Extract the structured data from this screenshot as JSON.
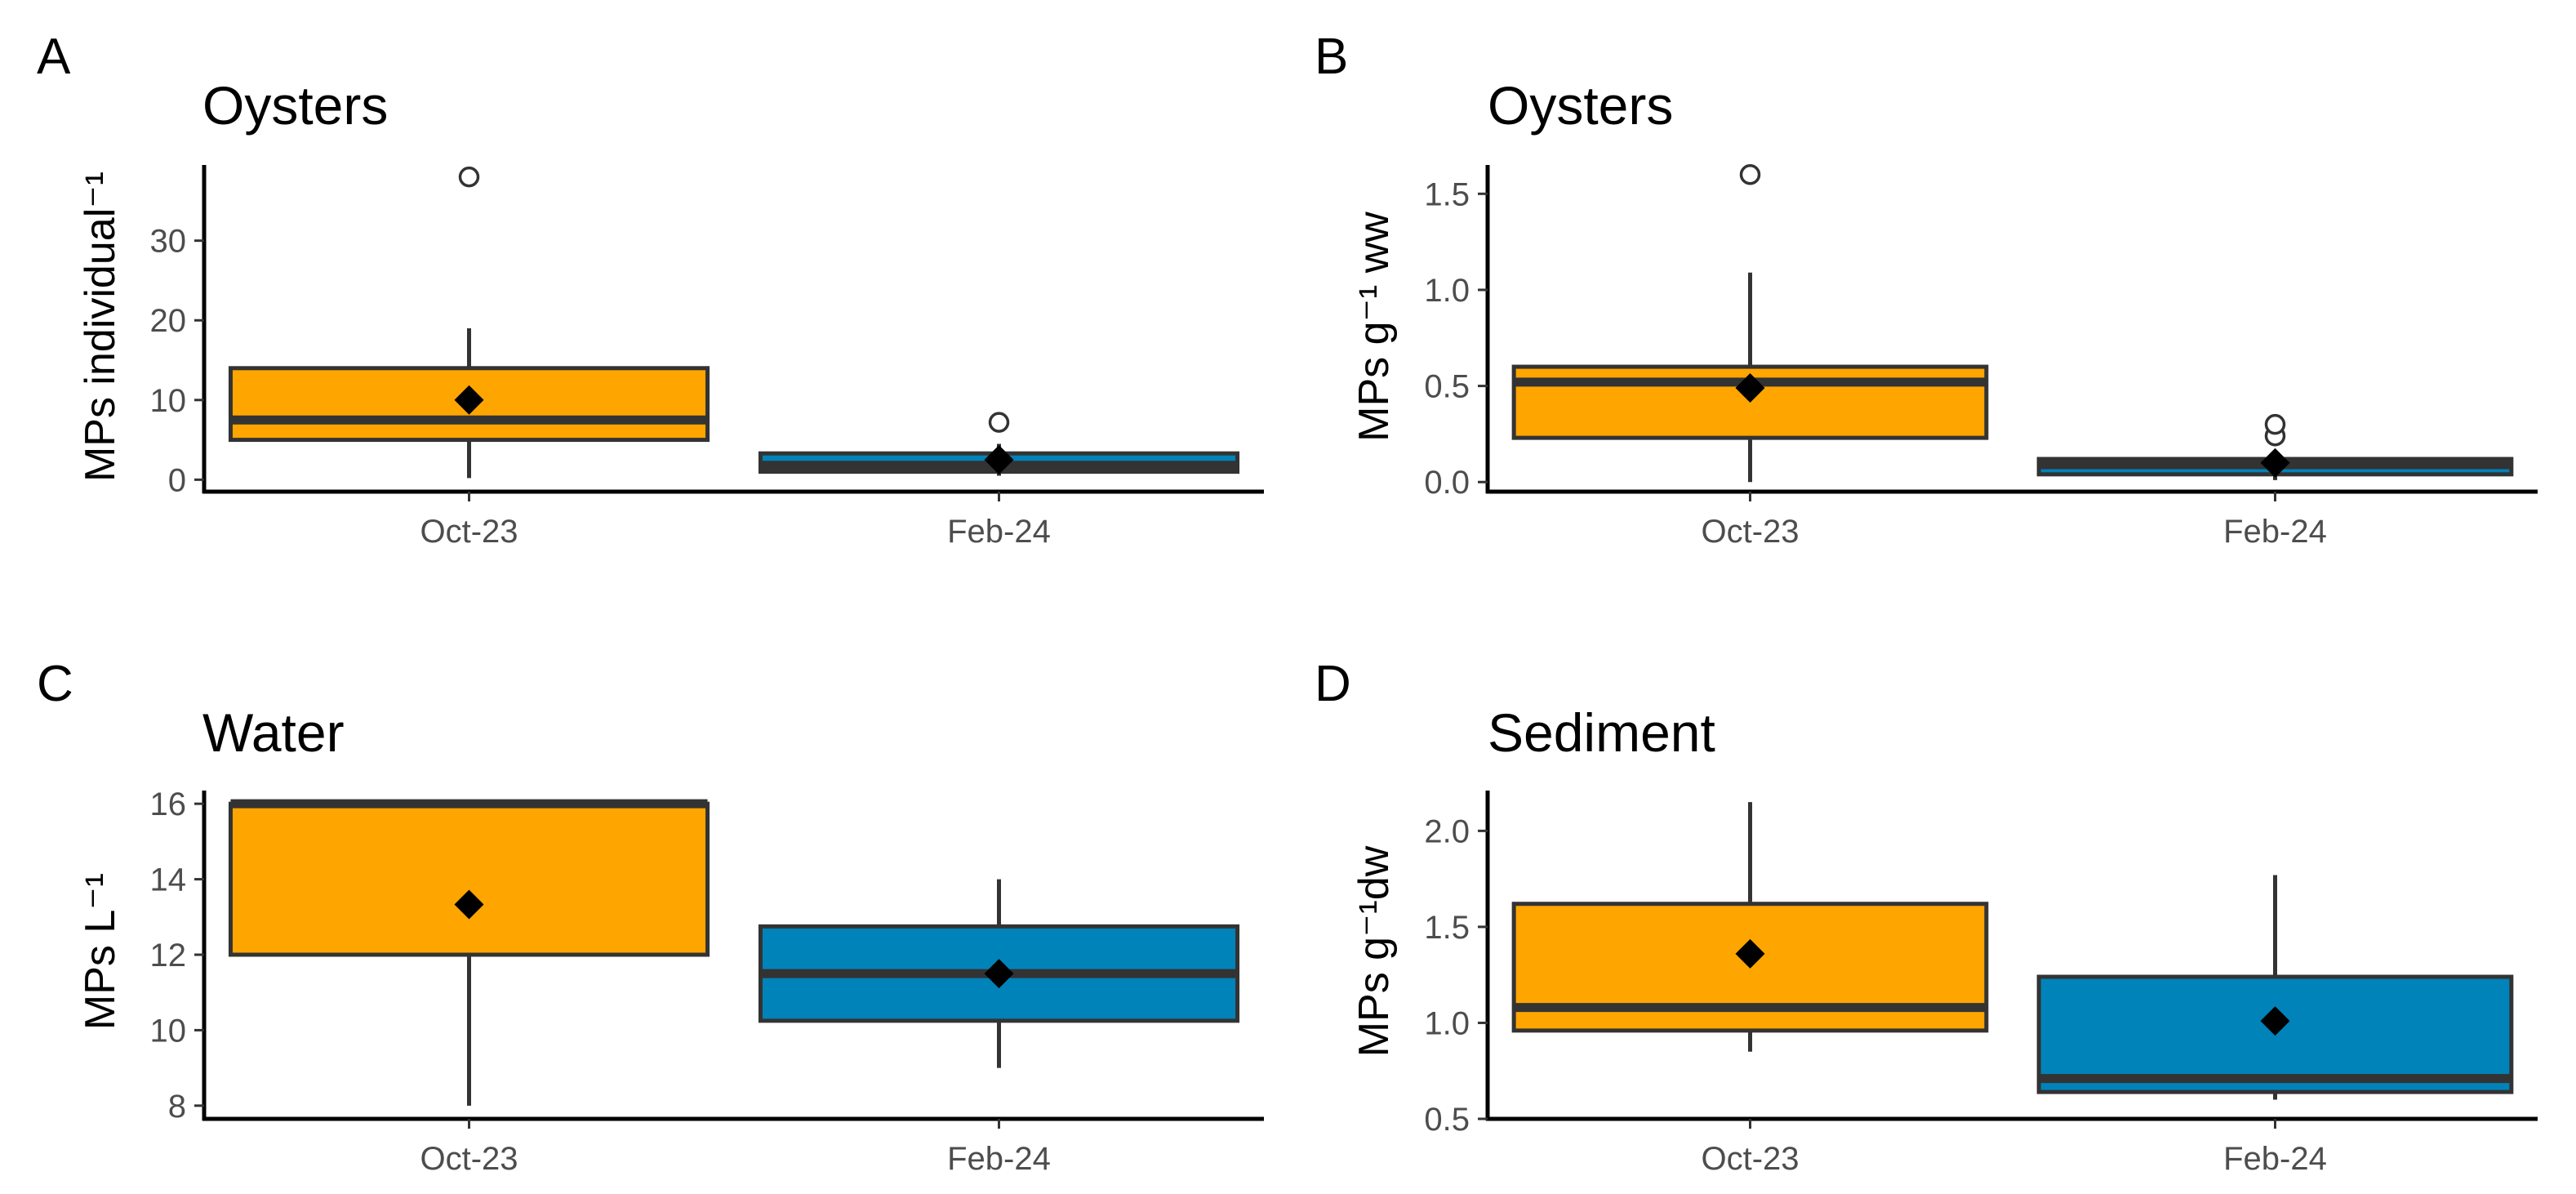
{
  "colors": {
    "oct": "#FFA500",
    "feb": "#0083B9",
    "outline": "#333333",
    "mean": "#000000"
  },
  "chart_data": [
    {
      "type": "box",
      "panel": "A",
      "title": "Oysters",
      "ylabel": "MPs individual⁻¹",
      "xlabel": "",
      "categories": [
        "Oct-23",
        "Feb-24"
      ],
      "ylim": [
        -1.5,
        39.5
      ],
      "yticks": [
        0,
        10,
        20,
        30
      ],
      "ytick_labels": [
        "0",
        "10",
        "20",
        "30"
      ],
      "boxes": [
        {
          "category": "Oct-23",
          "min": 0.2,
          "q1": 5,
          "median": 7.5,
          "q3": 14,
          "max": 19,
          "mean": 10,
          "outliers": [
            38
          ]
        },
        {
          "category": "Feb-24",
          "min": 0.5,
          "q1": 1,
          "median": 1.8,
          "q3": 3.3,
          "max": 4.5,
          "mean": 2.5,
          "outliers": [
            7.2
          ]
        }
      ]
    },
    {
      "type": "box",
      "panel": "B",
      "title": "Oysters",
      "ylabel": "MPs g⁻¹ ww",
      "xlabel": "",
      "categories": [
        "Oct-23",
        "Feb-24"
      ],
      "ylim": [
        -0.05,
        1.65
      ],
      "yticks": [
        0,
        0.5,
        1.0,
        1.5
      ],
      "ytick_labels": [
        "0.0",
        "0.5",
        "1.0",
        "1.5"
      ],
      "boxes": [
        {
          "category": "Oct-23",
          "min": 0.0,
          "q1": 0.23,
          "median": 0.52,
          "q3": 0.6,
          "max": 1.09,
          "mean": 0.49,
          "outliers": [
            1.6
          ]
        },
        {
          "category": "Feb-24",
          "min": 0.01,
          "q1": 0.04,
          "median": 0.09,
          "q3": 0.12,
          "max": 0.14,
          "mean": 0.1,
          "outliers": [
            0.24,
            0.3
          ]
        }
      ]
    },
    {
      "type": "box",
      "panel": "C",
      "title": "Water",
      "ylabel": "MPs L⁻¹",
      "xlabel": "",
      "categories": [
        "Oct-23",
        "Feb-24"
      ],
      "ylim": [
        7.65,
        16.35
      ],
      "yticks": [
        8,
        10,
        12,
        14,
        16
      ],
      "ytick_labels": [
        "8",
        "10",
        "12",
        "14",
        "16"
      ],
      "boxes": [
        {
          "category": "Oct-23",
          "min": 8,
          "q1": 12,
          "median": 16,
          "q3": 16,
          "max": 16,
          "mean": 13.33,
          "outliers": []
        },
        {
          "category": "Feb-24",
          "min": 9,
          "q1": 10.25,
          "median": 11.5,
          "q3": 12.75,
          "max": 14,
          "mean": 11.5,
          "outliers": []
        }
      ]
    },
    {
      "type": "box",
      "panel": "D",
      "title": "Sediment",
      "ylabel": "MPs g⁻¹dw",
      "xlabel": "",
      "categories": [
        "Oct-23",
        "Feb-24"
      ],
      "ylim": [
        0.5,
        2.21
      ],
      "yticks": [
        0.5,
        1.0,
        1.5,
        2.0
      ],
      "ytick_labels": [
        "0.5",
        "1.0",
        "1.5",
        "2.0"
      ],
      "boxes": [
        {
          "category": "Oct-23",
          "min": 0.85,
          "q1": 0.96,
          "median": 1.08,
          "q3": 1.62,
          "max": 2.15,
          "mean": 1.36,
          "outliers": []
        },
        {
          "category": "Feb-24",
          "min": 0.6,
          "q1": 0.64,
          "median": 0.71,
          "q3": 1.24,
          "max": 1.77,
          "mean": 1.01,
          "outliers": []
        }
      ]
    }
  ]
}
